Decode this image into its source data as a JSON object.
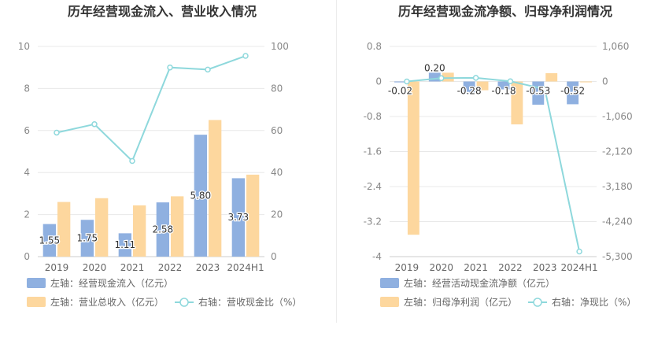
{
  "colors": {
    "bar_blue": "#8fb0e0",
    "bar_orange": "#fdd79e",
    "line_cyan": "#8ed8dc"
  },
  "chart_data": [
    {
      "type": "bar",
      "title": "历年经营现金流入、营业收入情况",
      "categories": [
        "2019",
        "2020",
        "2021",
        "2022",
        "2023",
        "2024H1"
      ],
      "left_axis": {
        "ticks": [
          "0",
          "2",
          "4",
          "6",
          "8",
          "10"
        ],
        "ylim": [
          0,
          10
        ]
      },
      "right_axis": {
        "ticks": [
          "0",
          "20",
          "40",
          "60",
          "80",
          "100"
        ],
        "ylim": [
          0,
          100
        ]
      },
      "grid": true,
      "series": [
        {
          "name": "左轴：经营现金流入（亿元）",
          "type": "bar",
          "axis": "left",
          "values": [
            1.55,
            1.75,
            1.11,
            2.58,
            5.8,
            3.73
          ],
          "labels": [
            "1.55",
            "1.75",
            "1.11",
            "2.58",
            "5.80",
            "3.73"
          ]
        },
        {
          "name": "左轴：营业总收入（亿元）",
          "type": "bar",
          "axis": "left",
          "values": [
            2.6,
            2.78,
            2.44,
            2.87,
            6.5,
            3.9
          ]
        },
        {
          "name": "右轴：营收现金比（%）",
          "type": "line",
          "axis": "right",
          "values": [
            59,
            63,
            45.5,
            90,
            89,
            95.5
          ]
        }
      ],
      "legend_placement": "bottom"
    },
    {
      "type": "bar",
      "title": "历年经营现金流净额、归母净利润情况",
      "categories": [
        "2019",
        "2020",
        "2021",
        "2022",
        "2023",
        "2024H1"
      ],
      "left_axis": {
        "ticks": [
          "0.8",
          "0",
          "-0.8",
          "-1.6",
          "-2.4",
          "-3.2",
          "-4"
        ],
        "ylim": [
          -4,
          0.8
        ]
      },
      "right_axis": {
        "ticks": [
          "1,060",
          "0",
          "-1,060",
          "-2,120",
          "-3,180",
          "-4,240",
          "-5,300"
        ],
        "ylim": [
          -5300,
          1060
        ]
      },
      "grid": true,
      "series": [
        {
          "name": "左轴：经营活动现金流净额（亿元）",
          "type": "bar",
          "axis": "left",
          "values": [
            -0.02,
            0.2,
            -0.28,
            -0.18,
            -0.53,
            -0.52
          ],
          "labels": [
            "-0.02",
            "0.20",
            "-0.28",
            "-0.18",
            "-0.53",
            "-0.52"
          ]
        },
        {
          "name": "左轴：归母净利润（亿元）",
          "type": "bar",
          "axis": "left",
          "values": [
            -3.5,
            0.2,
            -0.2,
            -0.98,
            0.19,
            -0.02
          ]
        },
        {
          "name": "右轴：净现比（%）",
          "type": "line",
          "axis": "right",
          "values": [
            0.5,
            100,
            110,
            5,
            -230,
            -5145
          ]
        }
      ],
      "legend_placement": "bottom"
    }
  ]
}
